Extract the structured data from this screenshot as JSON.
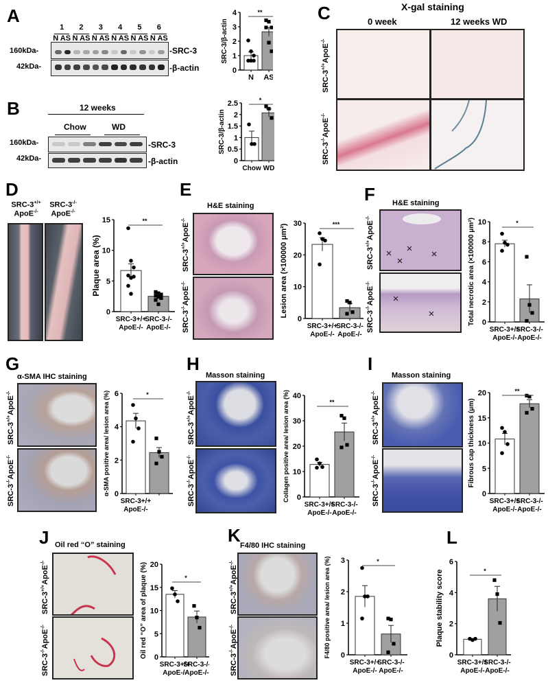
{
  "figure": {
    "panels": {
      "A": {
        "label": "A",
        "lanes": [
          "1",
          "2",
          "3",
          "4",
          "5",
          "6"
        ],
        "lane_sublabels": "N AS",
        "markers": [
          "160kDa-",
          "42kDa-"
        ],
        "bands": [
          "-SRC-3",
          "-β-actin"
        ]
      },
      "B": {
        "label": "B",
        "header": "12 weeks",
        "groups": [
          "Chow",
          "WD"
        ],
        "markers": [
          "160kDa-",
          "42kDa-"
        ],
        "bands": [
          "-SRC-3",
          "-β-actin"
        ]
      },
      "C": {
        "label": "C",
        "title": "X-gal staining",
        "columns": [
          "0 week",
          "12 weeks WD"
        ],
        "rows": [
          "SRC-3+/+ApoE-/-",
          "SRC-3-/-ApoE-/-"
        ]
      },
      "D": {
        "label": "D",
        "image_labels": [
          "SRC-3+/+ ApoE-/-",
          "SRC-3-/- ApoE-/-"
        ]
      },
      "E": {
        "label": "E",
        "title": "H&E staining",
        "rows": [
          "SRC-3+/+ApoE-/-",
          "SRC-3-/-ApoE-/-"
        ]
      },
      "F": {
        "label": "F",
        "title": "H&E staining",
        "rows": [
          "SRC-3+/+ApoE-/-",
          "SRC-3-/-ApoE-/-"
        ]
      },
      "G": {
        "label": "G",
        "title": "α-SMA IHC staining",
        "rows": [
          "SRC-3+/+ApoE-/-",
          "SRC-3-/-ApoE-/-"
        ]
      },
      "H": {
        "label": "H",
        "title": "Masson staining",
        "rows": [
          "SRC-3+/+ApoE-/-",
          "SRC-3-/-ApoE-/-"
        ]
      },
      "I": {
        "label": "I",
        "title": "Masson staining",
        "rows": [
          "SRC-3+/+ApoE-/-",
          "SRC-3-/-ApoE-/-"
        ]
      },
      "J": {
        "label": "J",
        "title": "Oil red “O” staining",
        "rows": [
          "SRC-3+/+ApoE-/-",
          "SRC-3-/-ApoE-/-"
        ]
      },
      "K": {
        "label": "K",
        "title": "F4/80 IHC staining",
        "rows": [
          "SRC-3+/+ApoE-/-",
          "SRC-3-/-ApoE-/-"
        ]
      },
      "L": {
        "label": "L"
      }
    }
  },
  "chart_data": [
    {
      "panel": "A",
      "type": "bar",
      "categories": [
        "N",
        "AS"
      ],
      "ylabel": "SRC-3/β-actin",
      "ylim": [
        0,
        4
      ],
      "yticks": [
        0,
        1,
        2,
        3,
        4
      ],
      "significance": "**",
      "series": [
        {
          "name": "mean",
          "values": [
            1.0,
            2.65
          ]
        },
        {
          "name": "sem",
          "values": [
            0.25,
            0.3
          ]
        }
      ],
      "points": [
        [
          2.05,
          1.3,
          1.0,
          0.65,
          0.65,
          0.65
        ],
        [
          3.45,
          3.35,
          2.95,
          2.95,
          1.9,
          1.3
        ]
      ]
    },
    {
      "panel": "B",
      "type": "bar",
      "categories": [
        "Chow",
        "WD"
      ],
      "ylabel": "SRC-3/β-actin",
      "ylim": [
        0,
        2.5
      ],
      "yticks": [
        0,
        0.5,
        1.0,
        1.5,
        2.0,
        2.5
      ],
      "significance": "*",
      "series": [
        {
          "name": "mean",
          "values": [
            1.0,
            2.07
          ]
        },
        {
          "name": "sem",
          "values": [
            0.28,
            0.17
          ]
        }
      ],
      "points": [
        [
          1.57,
          0.72,
          0.72
        ],
        [
          2.35,
          2.25,
          1.85
        ]
      ]
    },
    {
      "panel": "D",
      "type": "bar",
      "categories": [
        "SRC-3+/+ ApoE-/-",
        "SRC-3-/- ApoE-/-"
      ],
      "ylabel": "Plaque area (%)",
      "ylim": [
        0,
        15
      ],
      "yticks": [
        0,
        5,
        10,
        15
      ],
      "significance": "**",
      "series": [
        {
          "name": "mean",
          "values": [
            6.7,
            2.5
          ]
        },
        {
          "name": "sem",
          "values": [
            1.1,
            0.3
          ]
        }
      ],
      "points": [
        [
          13.6,
          8.3,
          7.2,
          5.9,
          5.5,
          5.7,
          4.2,
          2.9
        ],
        [
          3.2,
          3.0,
          2.8,
          2.6,
          2.4,
          2.2,
          1.9,
          1.2
        ]
      ]
    },
    {
      "panel": "E",
      "type": "bar",
      "categories": [
        "SRC-3+/+ ApoE-/-",
        "SRC-3-/- ApoE-/-"
      ],
      "ylabel": "Lesion area (×100000 μm²)",
      "ylim": [
        0,
        30
      ],
      "yticks": [
        0,
        10,
        20,
        30
      ],
      "significance": "***",
      "series": [
        {
          "name": "mean",
          "values": [
            23.3,
            3.4
          ]
        },
        {
          "name": "sem",
          "values": [
            2.1,
            1.3
          ]
        }
      ],
      "points": [
        [
          26.8,
          25.0,
          24.5,
          17.0
        ],
        [
          5.5,
          5.0,
          2.0,
          1.5
        ]
      ]
    },
    {
      "panel": "F",
      "type": "bar",
      "categories": [
        "SRC-3+/+ ApoE-/-",
        "SRC-3-/- ApoE-/-"
      ],
      "ylabel": "Total necrotic area (×100000 μm²)",
      "ylim": [
        0,
        10
      ],
      "yticks": [
        0,
        2,
        4,
        6,
        8,
        10
      ],
      "significance": "*",
      "series": [
        {
          "name": "mean",
          "values": [
            7.8,
            2.3
          ]
        },
        {
          "name": "sem",
          "values": [
            0.35,
            1.4
          ]
        }
      ],
      "points": [
        [
          8.8,
          7.9,
          7.7,
          7.1
        ],
        [
          6.5,
          1.7,
          0.9,
          0.1
        ]
      ]
    },
    {
      "panel": "G",
      "type": "bar",
      "categories": [
        "SRC-3+/+ ApoE-/-",
        ""
      ],
      "ylabel": "α-SMA positive area/ lesion area (%)",
      "ylim": [
        0,
        6
      ],
      "yticks": [
        0,
        2,
        4,
        6
      ],
      "significance": "*",
      "series": [
        {
          "name": "mean",
          "values": [
            4.35,
            2.45
          ]
        },
        {
          "name": "sem",
          "values": [
            0.45,
            0.3
          ]
        }
      ],
      "points": [
        [
          5.3,
          4.5,
          3.9,
          3.1
        ],
        [
          3.3,
          2.5,
          2.2,
          1.8
        ]
      ]
    },
    {
      "panel": "H",
      "type": "bar",
      "categories": [
        "SRC-3+/+ ApoE-/-",
        "SRC-3-/- ApoE-/-"
      ],
      "ylabel": "Collagen positive area/ lesion area (%)",
      "ylim": [
        0,
        40
      ],
      "yticks": [
        0,
        10,
        20,
        30,
        40
      ],
      "significance": "**",
      "series": [
        {
          "name": "mean",
          "values": [
            12.8,
            25.6
          ]
        },
        {
          "name": "sem",
          "values": [
            0.8,
            3.5
          ]
        }
      ],
      "points": [
        [
          14.8,
          13.2,
          11.8,
          11.5
        ],
        [
          32.0,
          31.0,
          20.5,
          19.5
        ]
      ]
    },
    {
      "panel": "I",
      "type": "bar",
      "categories": [
        "SRC-3+/+ ApoE-/-",
        "SRC-3-/- ApoE-/-"
      ],
      "ylabel": "Fibrous cap thickness (μm)",
      "ylim": [
        0,
        20
      ],
      "yticks": [
        0,
        5,
        10,
        15,
        20
      ],
      "significance": "**",
      "series": [
        {
          "name": "mean",
          "values": [
            10.8,
            17.8
          ]
        },
        {
          "name": "sem",
          "values": [
            1.1,
            0.8
          ]
        }
      ],
      "points": [
        [
          13.0,
          12.2,
          9.8,
          8.0
        ],
        [
          19.4,
          19.2,
          16.8,
          16.0
        ]
      ]
    },
    {
      "panel": "J",
      "type": "bar",
      "categories": [
        "SRC-3+/+ ApoE-/-",
        "SRC-3-/- ApoE-/-"
      ],
      "ylabel": "Oil red “O” area of plaque (%)",
      "ylim": [
        0,
        20
      ],
      "yticks": [
        0,
        5,
        10,
        15,
        20
      ],
      "significance": "*",
      "series": [
        {
          "name": "mean",
          "values": [
            13.5,
            8.6
          ]
        },
        {
          "name": "sem",
          "values": [
            0.8,
            1.3
          ]
        }
      ],
      "points": [
        [
          14.8,
          13.5,
          12.0
        ],
        [
          11.0,
          8.5,
          6.3
        ]
      ]
    },
    {
      "panel": "K",
      "type": "bar",
      "categories": [
        "SRC-3+/+ ApoE-/-",
        "SRC-3-/- ApoE-/-"
      ],
      "ylabel": "F4/80 positive area/ lesion area (%)",
      "ylim": [
        0,
        3
      ],
      "yticks": [
        0,
        1,
        2,
        3
      ],
      "significance": "*",
      "series": [
        {
          "name": "mean",
          "values": [
            1.85,
            0.66
          ]
        },
        {
          "name": "sem",
          "values": [
            0.34,
            0.27
          ]
        }
      ],
      "points": [
        [
          2.75,
          1.85,
          1.85,
          1.15
        ],
        [
          1.15,
          1.12,
          0.35,
          0.08
        ]
      ]
    },
    {
      "panel": "L",
      "type": "bar",
      "categories": [
        "SRC-3+/+ ApoE-/-",
        "SRC-3-/- ApoE-/-"
      ],
      "ylabel": "Plaque stability score",
      "ylim": [
        0,
        6
      ],
      "yticks": [
        0,
        2,
        4,
        6
      ],
      "significance": "*",
      "series": [
        {
          "name": "mean",
          "values": [
            1.0,
            3.6
          ]
        },
        {
          "name": "sem",
          "values": [
            0.03,
            0.8
          ]
        }
      ],
      "points": [
        [
          1.03,
          0.95,
          1.03
        ],
        [
          4.8,
          3.9,
          2.05
        ]
      ]
    }
  ]
}
